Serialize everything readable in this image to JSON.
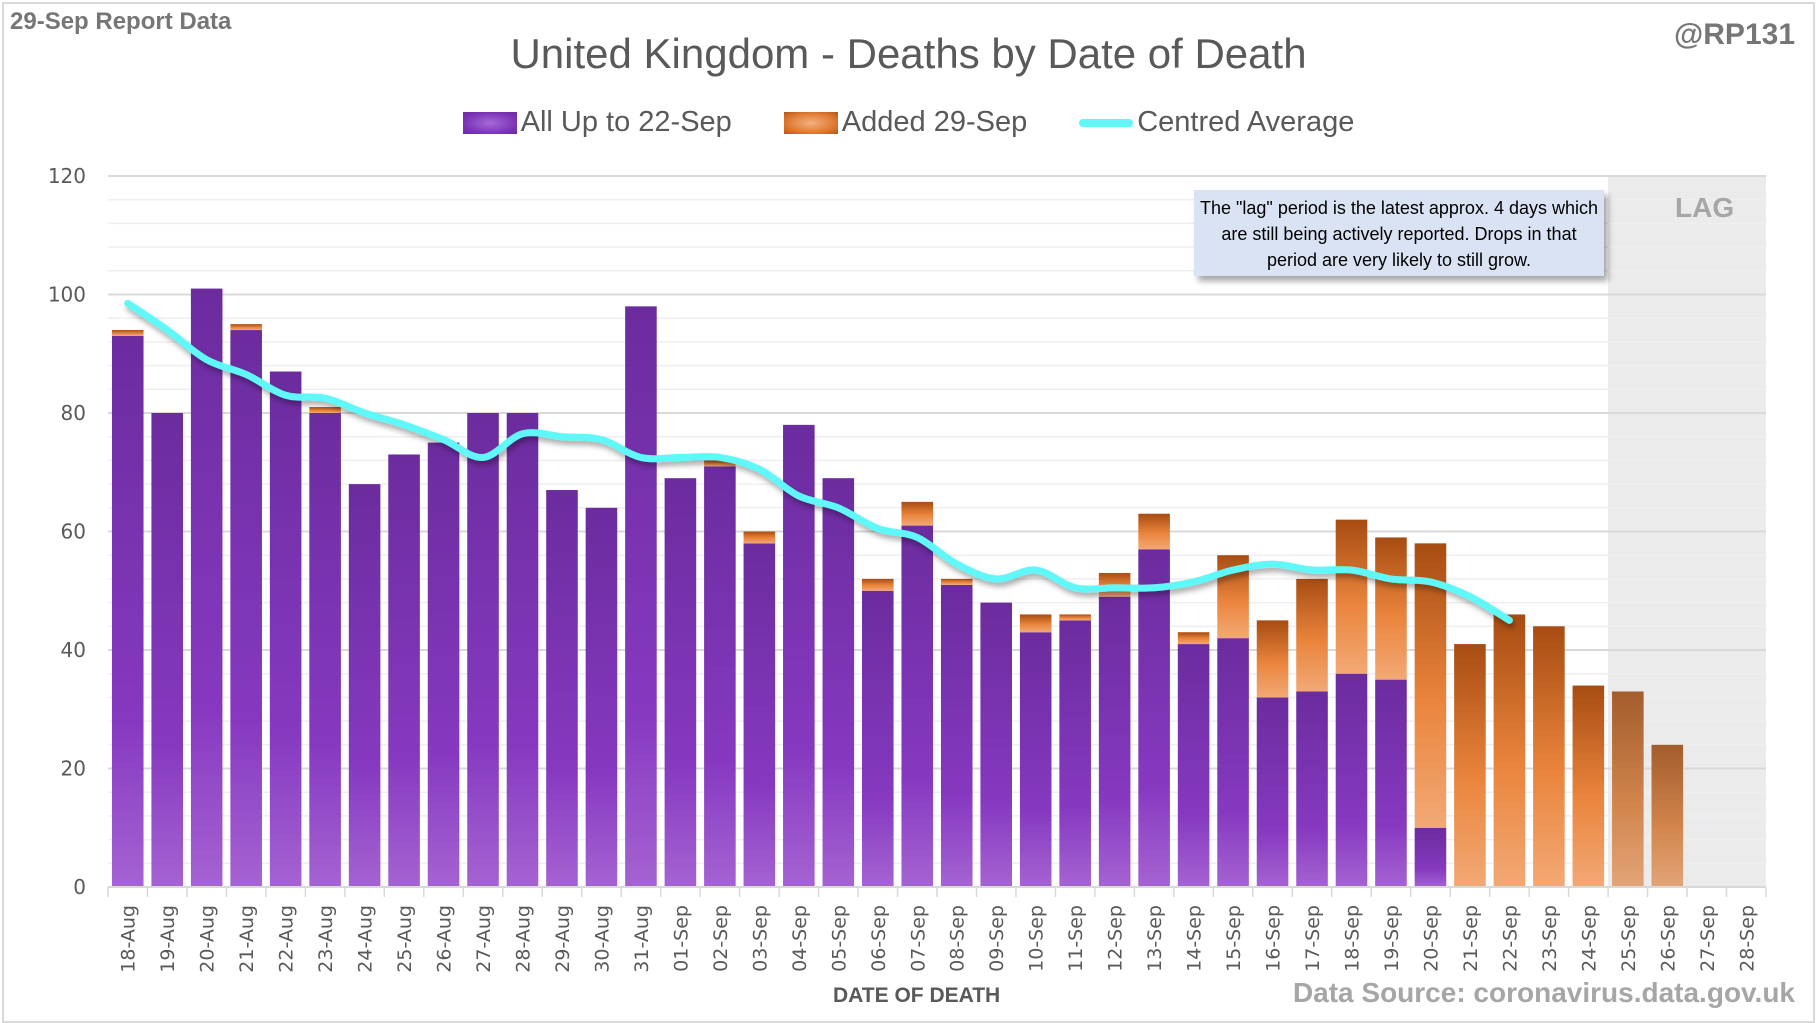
{
  "header": {
    "report_label": "29-Sep Report Data",
    "handle": "@RP131",
    "source": "Data Source: coronavirus.data.gov.uk"
  },
  "note": "The \"lag\" period is the latest approx. 4 days which are still being actively reported. Drops in that period are very likely to still grow.",
  "lag_label": "LAG",
  "colors": {
    "purple": "#7a32b4",
    "orange": "#e07c35",
    "average": "#5ff7f7",
    "lag_shade": "#ebebeb"
  },
  "chart_data": {
    "type": "bar",
    "stacked": true,
    "title": "United Kingdom - Deaths by Date of Death",
    "xlabel": "DATE OF DEATH",
    "ylabel": "",
    "ylim": [
      0,
      120
    ],
    "yticks": [
      0,
      20,
      40,
      60,
      80,
      100,
      120
    ],
    "grid": true,
    "legend_position": "top-center",
    "lag_region": [
      "25-Sep",
      "28-Sep"
    ],
    "categories": [
      "18-Aug",
      "19-Aug",
      "20-Aug",
      "21-Aug",
      "22-Aug",
      "23-Aug",
      "24-Aug",
      "25-Aug",
      "26-Aug",
      "27-Aug",
      "28-Aug",
      "29-Aug",
      "30-Aug",
      "31-Aug",
      "01-Sep",
      "02-Sep",
      "03-Sep",
      "04-Sep",
      "05-Sep",
      "06-Sep",
      "07-Sep",
      "08-Sep",
      "09-Sep",
      "10-Sep",
      "11-Sep",
      "12-Sep",
      "13-Sep",
      "14-Sep",
      "15-Sep",
      "16-Sep",
      "17-Sep",
      "18-Sep",
      "19-Sep",
      "20-Sep",
      "21-Sep",
      "22-Sep",
      "23-Sep",
      "24-Sep",
      "25-Sep",
      "26-Sep",
      "27-Sep",
      "28-Sep"
    ],
    "series": [
      {
        "name": "All Up to 22-Sep",
        "kind": "bar",
        "values": [
          93,
          80,
          101,
          94,
          87,
          80,
          68,
          73,
          75,
          80,
          80,
          67,
          64,
          98,
          69,
          71,
          58,
          78,
          69,
          50,
          61,
          51,
          48,
          43,
          45,
          49,
          57,
          41,
          42,
          32,
          33,
          36,
          35,
          10,
          0,
          0,
          0,
          0,
          0,
          0,
          0,
          0
        ]
      },
      {
        "name": "Added 29-Sep",
        "kind": "bar",
        "values": [
          1,
          0,
          0,
          1,
          0,
          1,
          0,
          0,
          0,
          0,
          0,
          0,
          0,
          0,
          0,
          1,
          2,
          0,
          0,
          2,
          4,
          1,
          0,
          3,
          1,
          4,
          6,
          2,
          14,
          13,
          19,
          26,
          24,
          48,
          41,
          46,
          44,
          34,
          33,
          24,
          0,
          0
        ]
      },
      {
        "name": "Centred Average",
        "kind": "line",
        "values": [
          98.5,
          94,
          89,
          86.5,
          83,
          82.5,
          80,
          78,
          75.5,
          72.5,
          76.5,
          76,
          75.5,
          72.5,
          72.5,
          72.5,
          70.5,
          66,
          64,
          60.5,
          59,
          54.5,
          52,
          53.5,
          50.5,
          50.5,
          50.5,
          51.5,
          53.5,
          54.5,
          53.5,
          53.5,
          52,
          51.5,
          49,
          45,
          null,
          null,
          null,
          null,
          null,
          null
        ]
      }
    ]
  }
}
